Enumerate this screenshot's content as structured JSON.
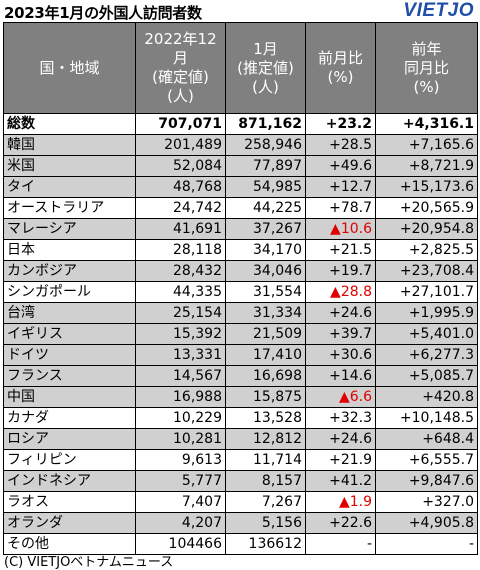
{
  "title": "2023年1月の外国人訪問者数",
  "logo": "VIETJO",
  "headers": {
    "country": "国・地域",
    "dec": [
      "2022年12",
      "月",
      "(確定値)",
      "(人)"
    ],
    "jan": [
      "1月",
      "(推定値)",
      "(人)"
    ],
    "mom": [
      "前月比",
      "(%)"
    ],
    "yoy": [
      "前年",
      "同月比",
      "(%)"
    ]
  },
  "rows": [
    {
      "name": "総数",
      "dec": "707,071",
      "jan": "871,162",
      "mom": "+23.2",
      "yoy": "+4,316.1",
      "style": "total"
    },
    {
      "name": "韓国",
      "dec": "201,489",
      "jan": "258,946",
      "mom": "+28.5",
      "yoy": "+7,165.6",
      "style": "gray"
    },
    {
      "name": "米国",
      "dec": "52,084",
      "jan": "77,897",
      "mom": "+49.6",
      "yoy": "+8,721.9",
      "style": "gray"
    },
    {
      "name": "タイ",
      "dec": "48,768",
      "jan": "54,985",
      "mom": "+12.7",
      "yoy": "+15,173.6",
      "style": "gray"
    },
    {
      "name": "オーストラリア",
      "dec": "24,742",
      "jan": "44,225",
      "mom": "+78.7",
      "yoy": "+20,565.9",
      "style": "white"
    },
    {
      "name": "マレーシア",
      "dec": "41,691",
      "jan": "37,267",
      "mom": "▲10.6",
      "yoy": "+20,954.8",
      "style": "gray"
    },
    {
      "name": "日本",
      "dec": "28,118",
      "jan": "34,170",
      "mom": "+21.5",
      "yoy": "+2,825.5",
      "style": "white"
    },
    {
      "name": "カンボジア",
      "dec": "28,432",
      "jan": "34,046",
      "mom": "+19.7",
      "yoy": "+23,708.4",
      "style": "gray"
    },
    {
      "name": "シンガポール",
      "dec": "44,335",
      "jan": "31,554",
      "mom": "▲28.8",
      "yoy": "+27,101.7",
      "style": "white"
    },
    {
      "name": "台湾",
      "dec": "25,154",
      "jan": "31,334",
      "mom": "+24.6",
      "yoy": "+1,995.9",
      "style": "gray"
    },
    {
      "name": "イギリス",
      "dec": "15,392",
      "jan": "21,509",
      "mom": "+39.7",
      "yoy": "+5,401.0",
      "style": "gray"
    },
    {
      "name": "ドイツ",
      "dec": "13,331",
      "jan": "17,410",
      "mom": "+30.6",
      "yoy": "+6,277.3",
      "style": "gray"
    },
    {
      "name": "フランス",
      "dec": "14,567",
      "jan": "16,698",
      "mom": "+14.6",
      "yoy": "+5,085.7",
      "style": "gray"
    },
    {
      "name": "中国",
      "dec": "16,988",
      "jan": "15,875",
      "mom": "▲6.6",
      "yoy": "+420.8",
      "style": "gray"
    },
    {
      "name": "カナダ",
      "dec": "10,229",
      "jan": "13,528",
      "mom": "+32.3",
      "yoy": "+10,148.5",
      "style": "white"
    },
    {
      "name": "ロシア",
      "dec": "10,281",
      "jan": "12,812",
      "mom": "+24.6",
      "yoy": "+648.4",
      "style": "gray"
    },
    {
      "name": "フィリピン",
      "dec": "9,613",
      "jan": "11,714",
      "mom": "+21.9",
      "yoy": "+6,555.7",
      "style": "white"
    },
    {
      "name": "インドネシア",
      "dec": "5,777",
      "jan": "8,157",
      "mom": "+41.2",
      "yoy": "+9,847.6",
      "style": "gray"
    },
    {
      "name": "ラオス",
      "dec": "7,407",
      "jan": "7,267",
      "mom": "▲1.9",
      "yoy": "+327.0",
      "style": "white"
    },
    {
      "name": "オランダ",
      "dec": "4,207",
      "jan": "5,156",
      "mom": "+22.6",
      "yoy": "+4,905.8",
      "style": "gray"
    },
    {
      "name": "その他",
      "dec": "104466",
      "jan": "136612",
      "mom": "-",
      "yoy": "-",
      "style": "white"
    }
  ],
  "footer": "(C) VIETJOベトナムニュース"
}
